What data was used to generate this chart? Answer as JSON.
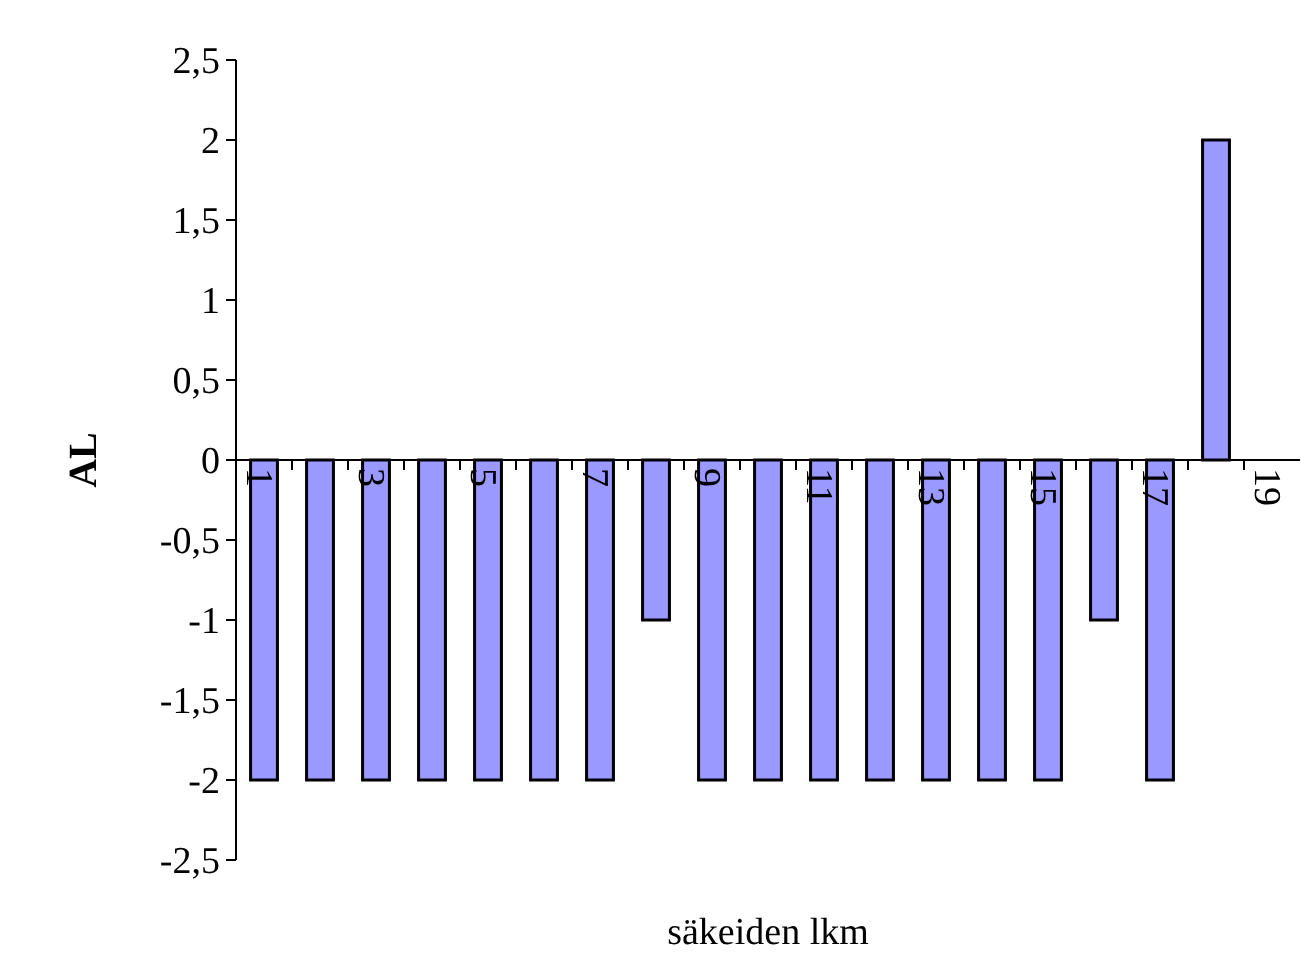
{
  "chart_data": {
    "type": "bar",
    "xlabel": "säkeiden lkm",
    "ylabel": "AL",
    "categories": [
      "1",
      null,
      "3",
      null,
      "5",
      null,
      "7",
      null,
      "9",
      null,
      "11",
      null,
      "13",
      null,
      "15",
      null,
      "17",
      null,
      "19"
    ],
    "values": [
      -2,
      -2,
      -2,
      -2,
      -2,
      -2,
      -2,
      -1,
      -2,
      -2,
      -2,
      -2,
      -2,
      -2,
      -2,
      -1,
      -2,
      2,
      null
    ],
    "color": "#9999ff",
    "ylim": [
      -2.5,
      2.5
    ],
    "yticks": [
      {
        "value": -2.5,
        "label": "-2,5"
      },
      -2,
      {
        "value": -1.5,
        "label": "-1,5"
      },
      -1,
      {
        "value": -0.5,
        "label": "-0,5"
      },
      0,
      {
        "value": 0.5,
        "label": "0,5"
      },
      1,
      {
        "value": 1.5,
        "label": "1,5"
      },
      2,
      {
        "value": 2.5,
        "label": "2,5"
      }
    ],
    "grid": false
  }
}
